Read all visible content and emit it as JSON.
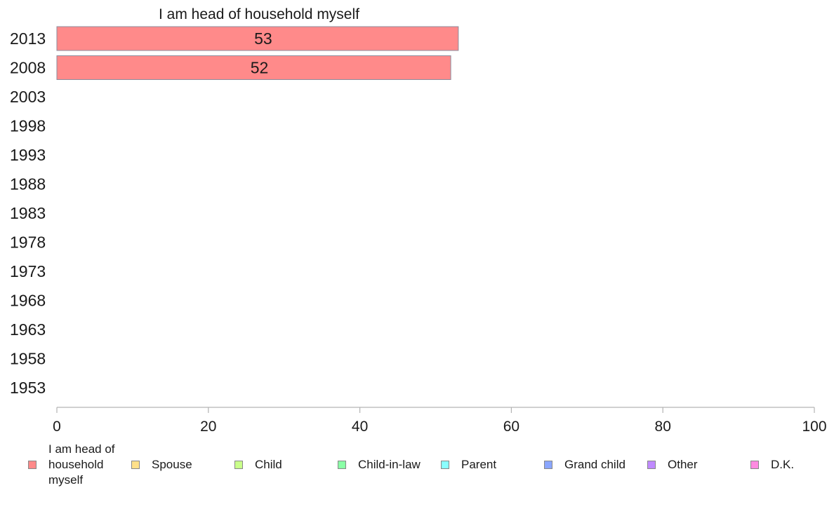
{
  "chart_data": {
    "type": "bar",
    "orientation": "horizontal",
    "title": "I am head of household myself",
    "categories": [
      "2013",
      "2008",
      "2003",
      "1998",
      "1993",
      "1988",
      "1983",
      "1978",
      "1973",
      "1968",
      "1963",
      "1958",
      "1953"
    ],
    "series": [
      {
        "name": "I am head of household myself",
        "values": [
          53,
          52,
          null,
          null,
          null,
          null,
          null,
          null,
          null,
          null,
          null,
          null,
          null
        ]
      }
    ],
    "data_labels": [
      "53",
      "52"
    ],
    "xlim": [
      0,
      100
    ],
    "xticks": [
      "0",
      "20",
      "40",
      "60",
      "80",
      "100"
    ],
    "xlabel": "",
    "ylabel": "",
    "grid": false,
    "bar_color": "#ff8a8a",
    "bar_edge_color": "#8c8c9c",
    "axis_color": "#b3b3b3",
    "legend_position": "bottom",
    "legend": [
      {
        "label": "I am head of household myself",
        "color": "#ff8a8a"
      },
      {
        "label": "Spouse",
        "color": "#ffe08a"
      },
      {
        "label": "Child",
        "color": "#c9ff8a"
      },
      {
        "label": "Child-in-law",
        "color": "#8affa6"
      },
      {
        "label": "Parent",
        "color": "#8affff"
      },
      {
        "label": "Grand child",
        "color": "#8aa6ff"
      },
      {
        "label": "Other",
        "color": "#c08aff"
      },
      {
        "label": "D.K.",
        "color": "#ff8ae0"
      }
    ]
  }
}
